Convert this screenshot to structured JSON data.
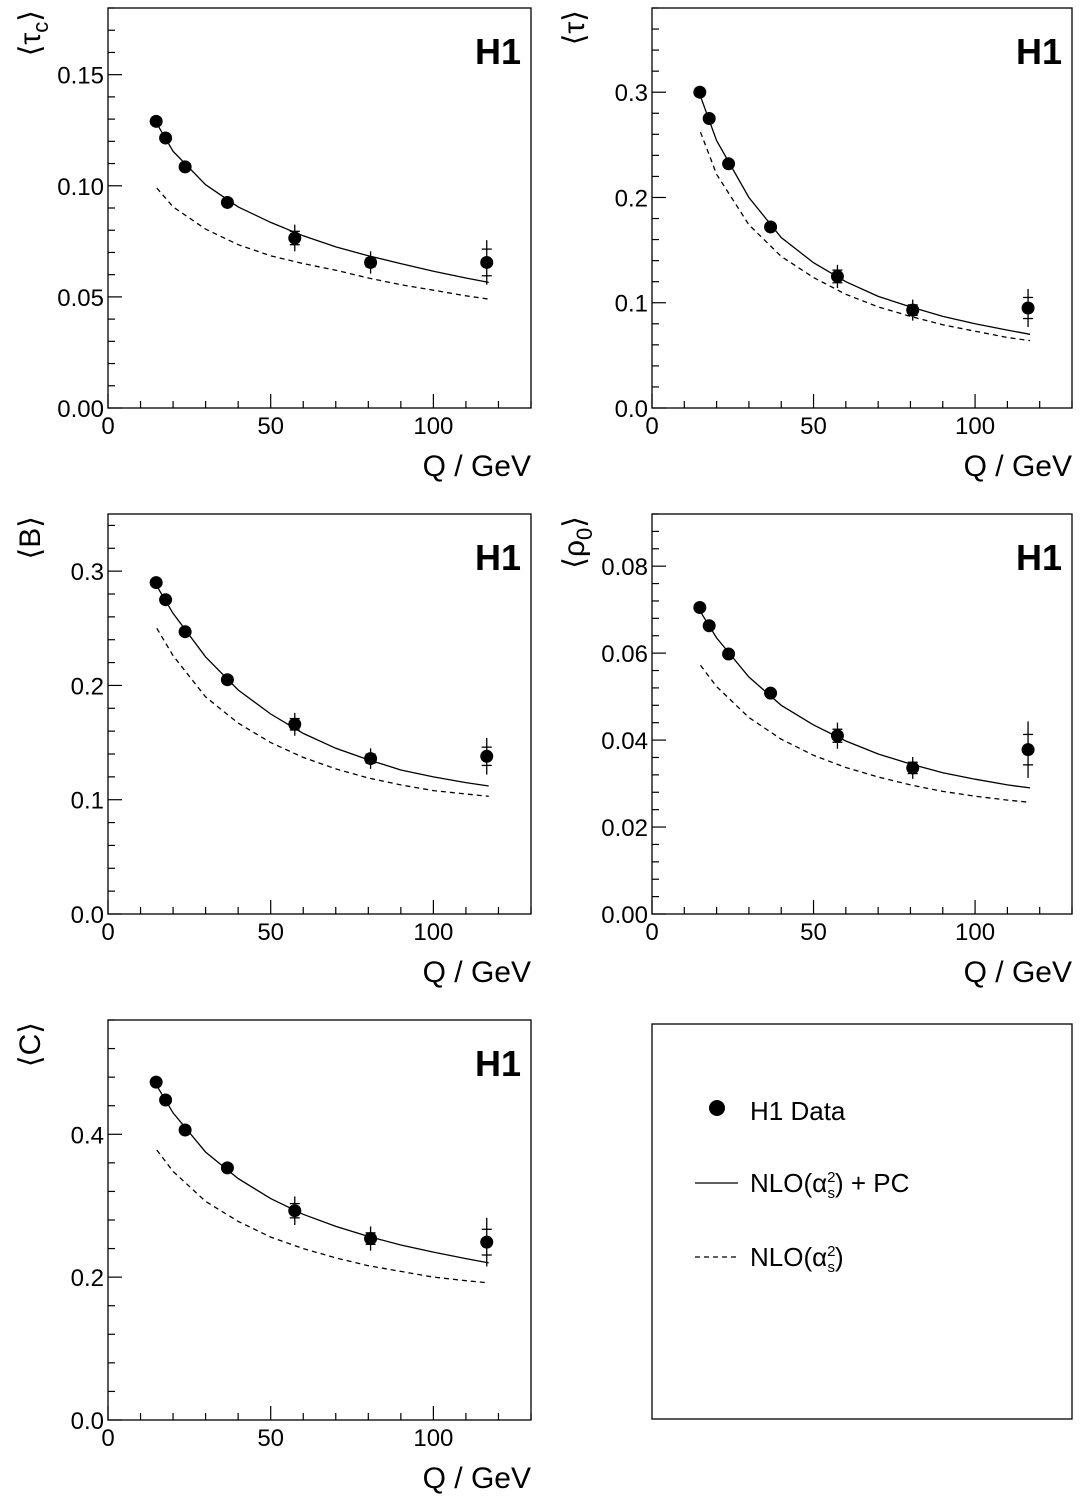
{
  "chart_data": [
    {
      "type": "scatter",
      "ylabel": "⟨τc⟩",
      "ylabel_main": "τ",
      "ylabel_sub": "c",
      "xlabel": "Q / GeV",
      "experiment_label": "H1",
      "xlim": [
        0,
        130
      ],
      "ylim": [
        0,
        0.18
      ],
      "xticks": [
        0,
        50,
        100
      ],
      "yticks": [
        0.0,
        0.05,
        0.1,
        0.15
      ],
      "ytick_labels": [
        "0.00",
        "0.05",
        "0.10",
        "0.15"
      ],
      "xtick_labels": [
        "0",
        "50",
        "100"
      ],
      "data": {
        "x": [
          14.8,
          17.7,
          23.7,
          36.7,
          57.4,
          80.7,
          116.4
        ],
        "y": [
          0.129,
          0.1215,
          0.1085,
          0.0925,
          0.0765,
          0.0655,
          0.0655
        ],
        "err_stat": [
          0.001,
          0.001,
          0.001,
          0.001,
          0.003,
          0.002,
          0.006
        ],
        "err_tot": [
          0.002,
          0.002,
          0.002,
          0.002,
          0.006,
          0.005,
          0.01
        ]
      },
      "series": [
        {
          "name": "NLO(αs²) + PC",
          "x": [
            15,
            20,
            30,
            40,
            50,
            60,
            70,
            80,
            90,
            100,
            110,
            117
          ],
          "y": [
            0.128,
            0.1155,
            0.1005,
            0.0905,
            0.0835,
            0.0775,
            0.0725,
            0.0685,
            0.065,
            0.0615,
            0.0585,
            0.0565
          ]
        },
        {
          "name": "NLO(αs²)",
          "x": [
            15,
            20,
            30,
            40,
            50,
            60,
            70,
            80,
            90,
            100,
            110,
            117
          ],
          "y": [
            0.099,
            0.0905,
            0.0805,
            0.0735,
            0.0685,
            0.065,
            0.062,
            0.0585,
            0.0555,
            0.053,
            0.0505,
            0.049
          ]
        }
      ]
    },
    {
      "type": "scatter",
      "ylabel": "⟨τ⟩",
      "ylabel_main": "τ",
      "ylabel_sub": "",
      "xlabel": "Q / GeV",
      "experiment_label": "H1",
      "xlim": [
        0,
        130
      ],
      "ylim": [
        0,
        0.38
      ],
      "xticks": [
        0,
        50,
        100
      ],
      "yticks": [
        0.0,
        0.1,
        0.2,
        0.3
      ],
      "ytick_labels": [
        "0.0",
        "0.1",
        "0.2",
        "0.3"
      ],
      "xtick_labels": [
        "0",
        "50",
        "100"
      ],
      "data": {
        "x": [
          14.8,
          17.7,
          23.7,
          36.7,
          57.4,
          80.7,
          116.4
        ],
        "y": [
          0.3,
          0.275,
          0.232,
          0.172,
          0.125,
          0.093,
          0.095
        ],
        "err_stat": [
          0.002,
          0.002,
          0.002,
          0.003,
          0.006,
          0.005,
          0.01
        ],
        "err_tot": [
          0.006,
          0.005,
          0.005,
          0.006,
          0.011,
          0.01,
          0.018
        ]
      },
      "series": [
        {
          "name": "NLO(αs²) + PC",
          "x": [
            15,
            20,
            30,
            40,
            50,
            60,
            70,
            80,
            90,
            100,
            110,
            117
          ],
          "y": [
            0.296,
            0.254,
            0.2,
            0.162,
            0.138,
            0.12,
            0.106,
            0.096,
            0.087,
            0.08,
            0.074,
            0.07
          ]
        },
        {
          "name": "NLO(αs²)",
          "x": [
            15,
            20,
            30,
            40,
            50,
            60,
            70,
            80,
            90,
            100,
            110,
            117
          ],
          "y": [
            0.262,
            0.222,
            0.174,
            0.144,
            0.124,
            0.108,
            0.096,
            0.087,
            0.079,
            0.073,
            0.067,
            0.064
          ]
        }
      ]
    },
    {
      "type": "scatter",
      "ylabel": "⟨B⟩",
      "ylabel_main": "B",
      "ylabel_sub": "",
      "xlabel": "Q / GeV",
      "experiment_label": "H1",
      "xlim": [
        0,
        130
      ],
      "ylim": [
        0,
        0.35
      ],
      "xticks": [
        0,
        50,
        100
      ],
      "yticks": [
        0.0,
        0.1,
        0.2,
        0.3
      ],
      "ytick_labels": [
        "0.0",
        "0.1",
        "0.2",
        "0.3"
      ],
      "xtick_labels": [
        "0",
        "50",
        "100"
      ],
      "data": {
        "x": [
          14.8,
          17.7,
          23.7,
          36.7,
          57.4,
          80.7,
          116.4
        ],
        "y": [
          0.29,
          0.275,
          0.247,
          0.205,
          0.166,
          0.136,
          0.138
        ],
        "err_stat": [
          0.002,
          0.002,
          0.002,
          0.002,
          0.005,
          0.004,
          0.008
        ],
        "err_tot": [
          0.005,
          0.004,
          0.004,
          0.004,
          0.01,
          0.009,
          0.016
        ]
      },
      "series": [
        {
          "name": "NLO(αs²) + PC",
          "x": [
            15,
            20,
            30,
            40,
            50,
            60,
            70,
            80,
            90,
            100,
            110,
            117
          ],
          "y": [
            0.287,
            0.263,
            0.225,
            0.196,
            0.175,
            0.158,
            0.145,
            0.135,
            0.126,
            0.12,
            0.115,
            0.112
          ]
        },
        {
          "name": "NLO(αs²)",
          "x": [
            15,
            20,
            30,
            40,
            50,
            60,
            70,
            80,
            90,
            100,
            110,
            117
          ],
          "y": [
            0.25,
            0.226,
            0.19,
            0.167,
            0.15,
            0.137,
            0.127,
            0.119,
            0.113,
            0.108,
            0.105,
            0.103
          ]
        }
      ]
    },
    {
      "type": "scatter",
      "ylabel": "⟨ρ0⟩",
      "ylabel_main": "ρ",
      "ylabel_sub": "0",
      "xlabel": "Q / GeV",
      "experiment_label": "H1",
      "xlim": [
        0,
        130
      ],
      "ylim": [
        0,
        0.092
      ],
      "xticks": [
        0,
        50,
        100
      ],
      "yticks": [
        0.0,
        0.02,
        0.04,
        0.06,
        0.08
      ],
      "ytick_labels": [
        "0.00",
        "0.02",
        "0.04",
        "0.06",
        "0.08"
      ],
      "xtick_labels": [
        "0",
        "50",
        "100"
      ],
      "data": {
        "x": [
          14.8,
          17.7,
          23.7,
          36.7,
          57.4,
          80.7,
          116.4
        ],
        "y": [
          0.0705,
          0.0663,
          0.0598,
          0.0508,
          0.041,
          0.0336,
          0.0378
        ],
        "err_stat": [
          0.0004,
          0.0004,
          0.0004,
          0.0005,
          0.0015,
          0.0013,
          0.0035
        ],
        "err_tot": [
          0.001,
          0.0009,
          0.001,
          0.001,
          0.003,
          0.0025,
          0.0065
        ]
      },
      "series": [
        {
          "name": "NLO(αs²) + PC",
          "x": [
            15,
            20,
            30,
            40,
            50,
            60,
            70,
            80,
            90,
            100,
            110,
            117
          ],
          "y": [
            0.0695,
            0.0635,
            0.0545,
            0.048,
            0.0435,
            0.0398,
            0.0368,
            0.0345,
            0.0325,
            0.031,
            0.0297,
            0.029
          ]
        },
        {
          "name": "NLO(αs²)",
          "x": [
            15,
            20,
            30,
            40,
            50,
            60,
            70,
            80,
            90,
            100,
            110,
            117
          ],
          "y": [
            0.0572,
            0.0523,
            0.0452,
            0.0402,
            0.0365,
            0.0337,
            0.0315,
            0.0297,
            0.0282,
            0.0271,
            0.0262,
            0.0257
          ]
        }
      ]
    },
    {
      "type": "scatter",
      "ylabel": "⟨C⟩",
      "ylabel_main": "C",
      "ylabel_sub": "",
      "xlabel": "Q / GeV",
      "experiment_label": "H1",
      "xlim": [
        0,
        130
      ],
      "ylim": [
        0,
        0.56
      ],
      "xticks": [
        0,
        50,
        100
      ],
      "yticks": [
        0.0,
        0.2,
        0.4
      ],
      "ytick_labels": [
        "0.0",
        "0.2",
        "0.4"
      ],
      "xtick_labels": [
        "0",
        "50",
        "100"
      ],
      "data": {
        "x": [
          14.8,
          17.7,
          23.7,
          36.7,
          57.4,
          80.7,
          116.4
        ],
        "y": [
          0.473,
          0.448,
          0.406,
          0.353,
          0.293,
          0.254,
          0.249
        ],
        "err_stat": [
          0.003,
          0.003,
          0.003,
          0.004,
          0.01,
          0.008,
          0.018
        ],
        "err_tot": [
          0.008,
          0.007,
          0.007,
          0.008,
          0.02,
          0.017,
          0.034
        ]
      },
      "series": [
        {
          "name": "NLO(αs²) + PC",
          "x": [
            15,
            20,
            30,
            40,
            50,
            60,
            70,
            80,
            90,
            100,
            110,
            117
          ],
          "y": [
            0.468,
            0.43,
            0.375,
            0.338,
            0.31,
            0.288,
            0.271,
            0.257,
            0.245,
            0.235,
            0.226,
            0.22
          ]
        },
        {
          "name": "NLO(αs²)",
          "x": [
            15,
            20,
            30,
            40,
            50,
            60,
            70,
            80,
            90,
            100,
            110,
            117
          ],
          "y": [
            0.378,
            0.348,
            0.306,
            0.278,
            0.256,
            0.24,
            0.227,
            0.216,
            0.208,
            0.2,
            0.195,
            0.192
          ]
        }
      ]
    }
  ],
  "legend": {
    "items": [
      {
        "label_main": "H1 Data",
        "marker": "dot"
      },
      {
        "label_main": "NLO(α",
        "label_sup": "2",
        "label_sub": "s",
        "label_end": ") + PC",
        "marker": "solid"
      },
      {
        "label_main": "NLO(α",
        "label_sup": "2",
        "label_sub": "s",
        "label_end": ")",
        "marker": "dashed"
      }
    ]
  },
  "colors": {
    "ink": "#000000",
    "background": "#ffffff"
  }
}
